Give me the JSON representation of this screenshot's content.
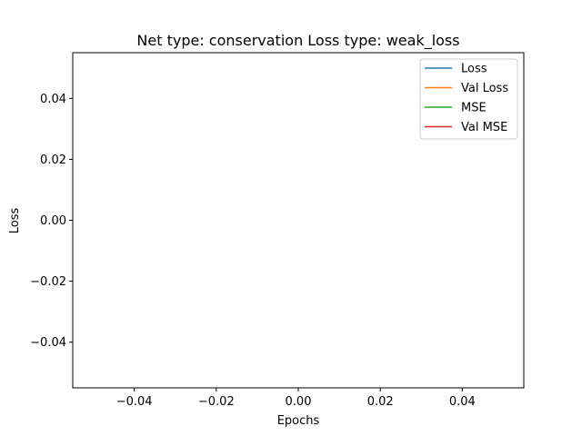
{
  "chart_data": {
    "type": "line",
    "title": "Net type: conservation Loss type: weak_loss",
    "xlabel": "Epochs",
    "ylabel": "Loss",
    "xlim": [
      -0.055,
      0.055
    ],
    "ylim": [
      -0.055,
      0.055
    ],
    "x_ticks": [
      "−0.04",
      "−0.02",
      "0.00",
      "0.02",
      "0.04"
    ],
    "y_ticks": [
      "−0.04",
      "−0.02",
      "0.00",
      "0.02",
      "0.04"
    ],
    "grid": false,
    "legend_position": "upper right",
    "series": [
      {
        "name": "Loss",
        "color": "#1f77b4",
        "x": [],
        "y": []
      },
      {
        "name": "Val Loss",
        "color": "#ff7f0e",
        "x": [],
        "y": []
      },
      {
        "name": "MSE",
        "color": "#2ca02c",
        "x": [],
        "y": []
      },
      {
        "name": "Val MSE",
        "color": "#d62728",
        "x": [],
        "y": []
      }
    ]
  }
}
